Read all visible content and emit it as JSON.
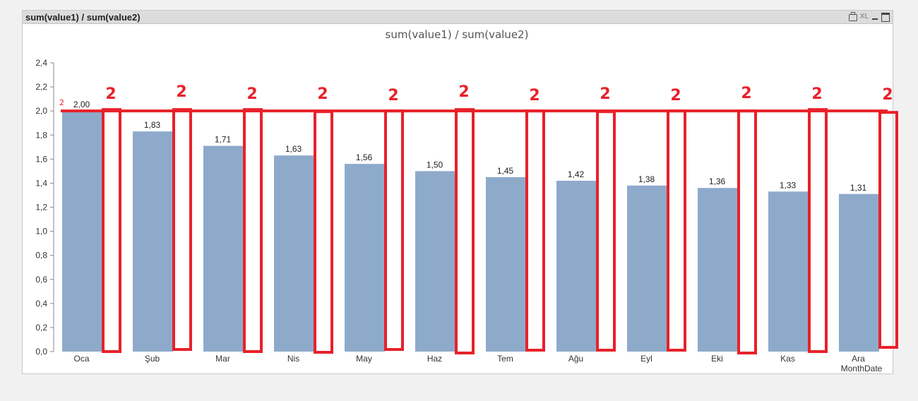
{
  "window": {
    "caption": "sum(value1) / sum(value2)",
    "icons": [
      "print-icon",
      "XL",
      "minimize-icon",
      "maximize-icon"
    ],
    "xl_label": "XL"
  },
  "colors": {
    "bar": "#8eaacb",
    "annotation": "#e8212a"
  },
  "chart_data": {
    "type": "bar",
    "title": "sum(value1) / sum(value2)",
    "xlabel": "MonthDate",
    "ylabel": "",
    "ylim": [
      0,
      2.4
    ],
    "yticks": [
      "0,0",
      "0,2",
      "0,4",
      "0,6",
      "0,8",
      "1,0",
      "1,2",
      "1,4",
      "1,6",
      "1,8",
      "2,0",
      "2,2",
      "2,4"
    ],
    "categories": [
      "Oca",
      "Şub",
      "Mar",
      "Nis",
      "May",
      "Haz",
      "Tem",
      "Ağu",
      "Eyl",
      "Eki",
      "Kas",
      "Ara"
    ],
    "values": [
      2.0,
      1.83,
      1.71,
      1.63,
      1.56,
      1.5,
      1.45,
      1.42,
      1.38,
      1.36,
      1.33,
      1.31
    ],
    "value_labels": [
      "2,00",
      "1,83",
      "1,71",
      "1,63",
      "1,56",
      "1,50",
      "1,45",
      "1,42",
      "1,38",
      "1,36",
      "1,33",
      "1,31"
    ],
    "grid": false,
    "annotation": {
      "reference_value": 2.0,
      "target_values": [
        2,
        2,
        2,
        2,
        2,
        2,
        2,
        2,
        2,
        2,
        2,
        2
      ],
      "labels": [
        "2",
        "2",
        "2",
        "2",
        "2",
        "2",
        "2",
        "2",
        "2",
        "2",
        "2",
        "2"
      ],
      "small_label": "2"
    }
  }
}
